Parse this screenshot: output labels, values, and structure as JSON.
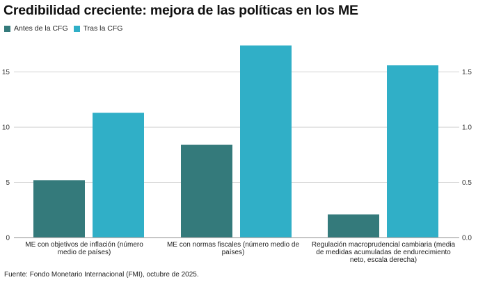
{
  "title": "Credibilidad creciente: mejora de las políticas en los ME",
  "source": "Fuente: Fondo Monetario Internacional (FMI), octubre de 2025.",
  "colors": {
    "series1": "#347a7b",
    "series2": "#30afc7",
    "grid": "#d2d2d2"
  },
  "chart_data": {
    "type": "bar",
    "title": "Credibilidad creciente: mejora de las políticas en los ME",
    "categories": [
      "ME con objetivos de inflación (número medio de países)",
      "ME con normas fiscales (número medio de países)",
      "Regulación macroprudencial cambiaria (media de medidas acumuladas de endurecimiento neto, escala derecha)"
    ],
    "series": [
      {
        "name": "Antes de la CFG",
        "values": [
          5.2,
          8.4,
          0.21
        ],
        "axis": [
          "left",
          "left",
          "right"
        ]
      },
      {
        "name": "Tras la CFG",
        "values": [
          11.3,
          17.4,
          1.56
        ],
        "axis": [
          "left",
          "left",
          "right"
        ]
      }
    ],
    "y_left": {
      "ticks": [
        "0",
        "5",
        "10",
        "15"
      ],
      "ylim": [
        0,
        18.5
      ]
    },
    "y_right": {
      "ticks": [
        "0.0",
        "0.5",
        "1.0",
        "1.5"
      ],
      "ylim": [
        0,
        1.85
      ]
    },
    "legend": "top-left",
    "grid": true
  }
}
